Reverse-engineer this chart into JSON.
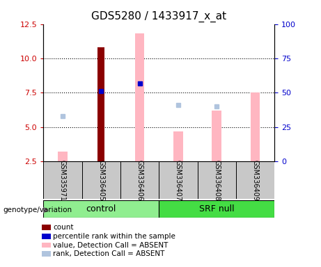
{
  "title": "GDS5280 / 1433917_x_at",
  "samples": [
    "GSM335971",
    "GSM336405",
    "GSM336406",
    "GSM336407",
    "GSM336408",
    "GSM336409"
  ],
  "ylim_left": [
    2.5,
    12.5
  ],
  "ylim_right": [
    0,
    100
  ],
  "yticks_left": [
    2.5,
    5.0,
    7.5,
    10.0,
    12.5
  ],
  "yticks_right": [
    0,
    25,
    50,
    75,
    100
  ],
  "count_bars": {
    "GSM335971": null,
    "GSM336405": 10.8,
    "GSM336406": null,
    "GSM336407": null,
    "GSM336408": null,
    "GSM336409": null
  },
  "percentile_rank_points": {
    "GSM335971": null,
    "GSM336405": 7.6,
    "GSM336406": 8.2,
    "GSM336407": null,
    "GSM336408": null,
    "GSM336409": null
  },
  "value_absent_bars": {
    "GSM335971": 3.2,
    "GSM336405": null,
    "GSM336406": 11.8,
    "GSM336407": 4.7,
    "GSM336408": 6.2,
    "GSM336409": 7.5
  },
  "rank_absent_points": {
    "GSM335971": 5.8,
    "GSM336405": null,
    "GSM336406": null,
    "GSM336407": 6.6,
    "GSM336408": 6.5,
    "GSM336409": null
  },
  "count_color": "#8B0000",
  "percentile_rank_color": "#0000CD",
  "value_absent_color": "#FFB6C1",
  "rank_absent_color": "#B0C4DE",
  "left_axis_color": "#CC0000",
  "right_axis_color": "#0000CC",
  "control_group_color": "#90EE90",
  "srfnull_group_color": "#44DD44",
  "label_bg_color": "#C8C8C8",
  "plot_bg_color": "#FFFFFF",
  "grid_color": "black",
  "label_fontsize": 8,
  "title_fontsize": 11,
  "tick_fontsize": 8
}
